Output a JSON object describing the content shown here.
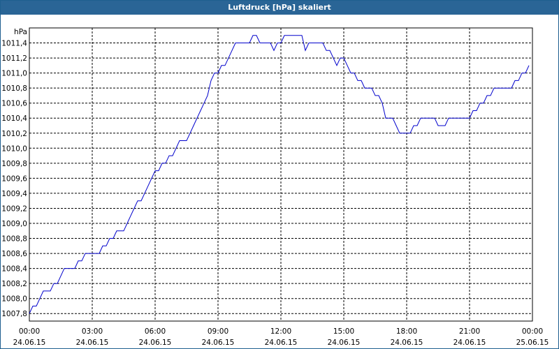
{
  "window": {
    "title": "Luftdruck [hPa] skaliert"
  },
  "chart_data": {
    "type": "line",
    "title": "Luftdruck [hPa] skaliert",
    "ylabel": "hPa",
    "xlabel": "",
    "ylim": [
      1007.7,
      1011.6
    ],
    "xlim": [
      "2015-06-24 00:00",
      "2015-06-25 00:00"
    ],
    "grid": true,
    "yticks": [
      "1007,8",
      "1008,0",
      "1008,2",
      "1008,4",
      "1008,6",
      "1008,8",
      "1009,0",
      "1009,2",
      "1009,4",
      "1009,6",
      "1009,8",
      "1010,0",
      "1010,2",
      "1010,4",
      "1010,6",
      "1010,8",
      "1011,0",
      "1011,2",
      "1011,4"
    ],
    "ytick_values": [
      1007.8,
      1008.0,
      1008.2,
      1008.4,
      1008.6,
      1008.8,
      1009.0,
      1009.2,
      1009.4,
      1009.6,
      1009.8,
      1010.0,
      1010.2,
      1010.4,
      1010.6,
      1010.8,
      1011.0,
      1011.2,
      1011.4
    ],
    "xticks": [
      {
        "time": "00:00",
        "date": "24.06.15"
      },
      {
        "time": "03:00",
        "date": "24.06.15"
      },
      {
        "time": "06:00",
        "date": "24.06.15"
      },
      {
        "time": "09:00",
        "date": "24.06.15"
      },
      {
        "time": "12:00",
        "date": "24.06.15"
      },
      {
        "time": "15:00",
        "date": "24.06.15"
      },
      {
        "time": "18:00",
        "date": "24.06.15"
      },
      {
        "time": "21:00",
        "date": "24.06.15"
      },
      {
        "time": "00:00",
        "date": "25.06.15"
      }
    ],
    "series": [
      {
        "color": "#0000cc",
        "x": [
          "00:00",
          "00:10",
          "00:20",
          "00:30",
          "00:40",
          "00:50",
          "01:00",
          "01:10",
          "01:20",
          "01:30",
          "01:40",
          "01:50",
          "02:00",
          "02:10",
          "02:20",
          "02:30",
          "02:40",
          "02:50",
          "03:00",
          "03:10",
          "03:20",
          "03:30",
          "03:40",
          "03:50",
          "04:00",
          "04:10",
          "04:20",
          "04:30",
          "04:40",
          "04:50",
          "05:00",
          "05:10",
          "05:20",
          "05:30",
          "05:40",
          "05:50",
          "06:00",
          "06:10",
          "06:20",
          "06:30",
          "06:40",
          "06:50",
          "07:00",
          "07:10",
          "07:20",
          "07:30",
          "07:40",
          "07:50",
          "08:00",
          "08:10",
          "08:20",
          "08:30",
          "08:40",
          "08:50",
          "09:00",
          "09:10",
          "09:20",
          "09:30",
          "09:40",
          "09:50",
          "10:00",
          "10:10",
          "10:20",
          "10:30",
          "10:40",
          "10:50",
          "11:00",
          "11:10",
          "11:20",
          "11:30",
          "11:40",
          "11:50",
          "12:00",
          "12:10",
          "12:20",
          "12:30",
          "12:40",
          "12:50",
          "13:00",
          "13:10",
          "13:20",
          "13:30",
          "13:40",
          "13:50",
          "14:00",
          "14:10",
          "14:20",
          "14:30",
          "14:40",
          "14:50",
          "15:00",
          "15:10",
          "15:20",
          "15:30",
          "15:40",
          "15:50",
          "16:00",
          "16:10",
          "16:20",
          "16:30",
          "16:40",
          "16:50",
          "17:00",
          "17:10",
          "17:20",
          "17:30",
          "17:40",
          "17:50",
          "18:00",
          "18:10",
          "18:20",
          "18:30",
          "18:40",
          "18:50",
          "19:00",
          "19:10",
          "19:20",
          "19:30",
          "19:40",
          "19:50",
          "20:00",
          "20:10",
          "20:20",
          "20:30",
          "20:40",
          "20:50",
          "21:00",
          "21:10",
          "21:20",
          "21:30",
          "21:40",
          "21:50",
          "22:00",
          "22:10",
          "22:20",
          "22:30",
          "22:40",
          "22:50",
          "23:00",
          "23:10",
          "23:20",
          "23:30",
          "23:40",
          "23:50"
        ],
        "y": [
          1007.8,
          1007.9,
          1007.9,
          1008.0,
          1008.1,
          1008.1,
          1008.1,
          1008.2,
          1008.2,
          1008.3,
          1008.4,
          1008.4,
          1008.4,
          1008.4,
          1008.5,
          1008.5,
          1008.6,
          1008.6,
          1008.6,
          1008.6,
          1008.6,
          1008.7,
          1008.7,
          1008.8,
          1008.8,
          1008.9,
          1008.9,
          1008.9,
          1009.0,
          1009.1,
          1009.2,
          1009.3,
          1009.3,
          1009.4,
          1009.5,
          1009.6,
          1009.7,
          1009.7,
          1009.8,
          1009.8,
          1009.9,
          1009.9,
          1010.0,
          1010.1,
          1010.1,
          1010.1,
          1010.2,
          1010.3,
          1010.4,
          1010.5,
          1010.6,
          1010.7,
          1010.9,
          1011.0,
          1011.0,
          1011.1,
          1011.1,
          1011.2,
          1011.3,
          1011.4,
          1011.4,
          1011.4,
          1011.4,
          1011.4,
          1011.5,
          1011.5,
          1011.4,
          1011.4,
          1011.4,
          1011.4,
          1011.3,
          1011.4,
          1011.4,
          1011.5,
          1011.5,
          1011.5,
          1011.5,
          1011.5,
          1011.5,
          1011.3,
          1011.4,
          1011.4,
          1011.4,
          1011.4,
          1011.4,
          1011.3,
          1011.3,
          1011.2,
          1011.1,
          1011.2,
          1011.2,
          1011.1,
          1011.0,
          1011.0,
          1010.9,
          1010.9,
          1010.8,
          1010.8,
          1010.8,
          1010.7,
          1010.7,
          1010.6,
          1010.4,
          1010.4,
          1010.4,
          1010.3,
          1010.2,
          1010.2,
          1010.2,
          1010.2,
          1010.3,
          1010.3,
          1010.4,
          1010.4,
          1010.4,
          1010.4,
          1010.4,
          1010.3,
          1010.3,
          1010.3,
          1010.4,
          1010.4,
          1010.4,
          1010.4,
          1010.4,
          1010.4,
          1010.4,
          1010.5,
          1010.5,
          1010.6,
          1010.6,
          1010.7,
          1010.7,
          1010.8,
          1010.8,
          1010.8,
          1010.8,
          1010.8,
          1010.8,
          1010.9,
          1010.9,
          1011.0,
          1011.0,
          1011.1
        ]
      }
    ]
  }
}
